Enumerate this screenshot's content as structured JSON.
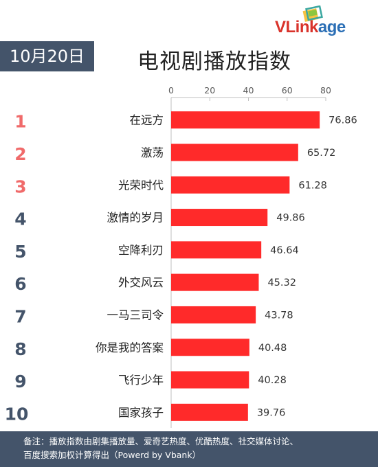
{
  "brand": {
    "logo_text_blue": "V",
    "logo_text_red": "Link",
    "logo_text_tail": "age",
    "red_color": "#d9332b",
    "blue_color": "#2b6fb6"
  },
  "header": {
    "date": "10月20日",
    "title": "电视剧播放指数"
  },
  "chart_data": {
    "type": "bar",
    "orientation": "horizontal",
    "title": "电视剧播放指数",
    "categories": [
      "在远方",
      "激荡",
      "光荣时代",
      "激情的岁月",
      "空降利刃",
      "外交风云",
      "一马三司令",
      "你是我的答案",
      "飞行少年",
      "国家孩子"
    ],
    "ranks": [
      "1",
      "2",
      "3",
      "4",
      "5",
      "6",
      "7",
      "8",
      "9",
      "10"
    ],
    "values": [
      76.86,
      65.72,
      61.28,
      49.86,
      46.64,
      45.32,
      43.78,
      40.48,
      40.28,
      39.76
    ],
    "value_labels": [
      "76.86",
      "65.72",
      "61.28",
      "49.86",
      "46.64",
      "45.32",
      "43.78",
      "40.48",
      "40.28",
      "39.76"
    ],
    "xlim": [
      0,
      80
    ],
    "xticks": [
      "0",
      "20",
      "40",
      "60",
      "80"
    ],
    "axis_position": "top",
    "grid": false,
    "bar_color": "#ff2a2a",
    "top_rank_color": "#f06a6a",
    "rank_color": "#44546a"
  },
  "footer": {
    "line1": "备注：播放指数由剧集播放量、爱奇艺热度、优酷热度、社交媒体讨论、",
    "line2": "百度搜索加权计算得出（Powerd by Vbank）"
  }
}
